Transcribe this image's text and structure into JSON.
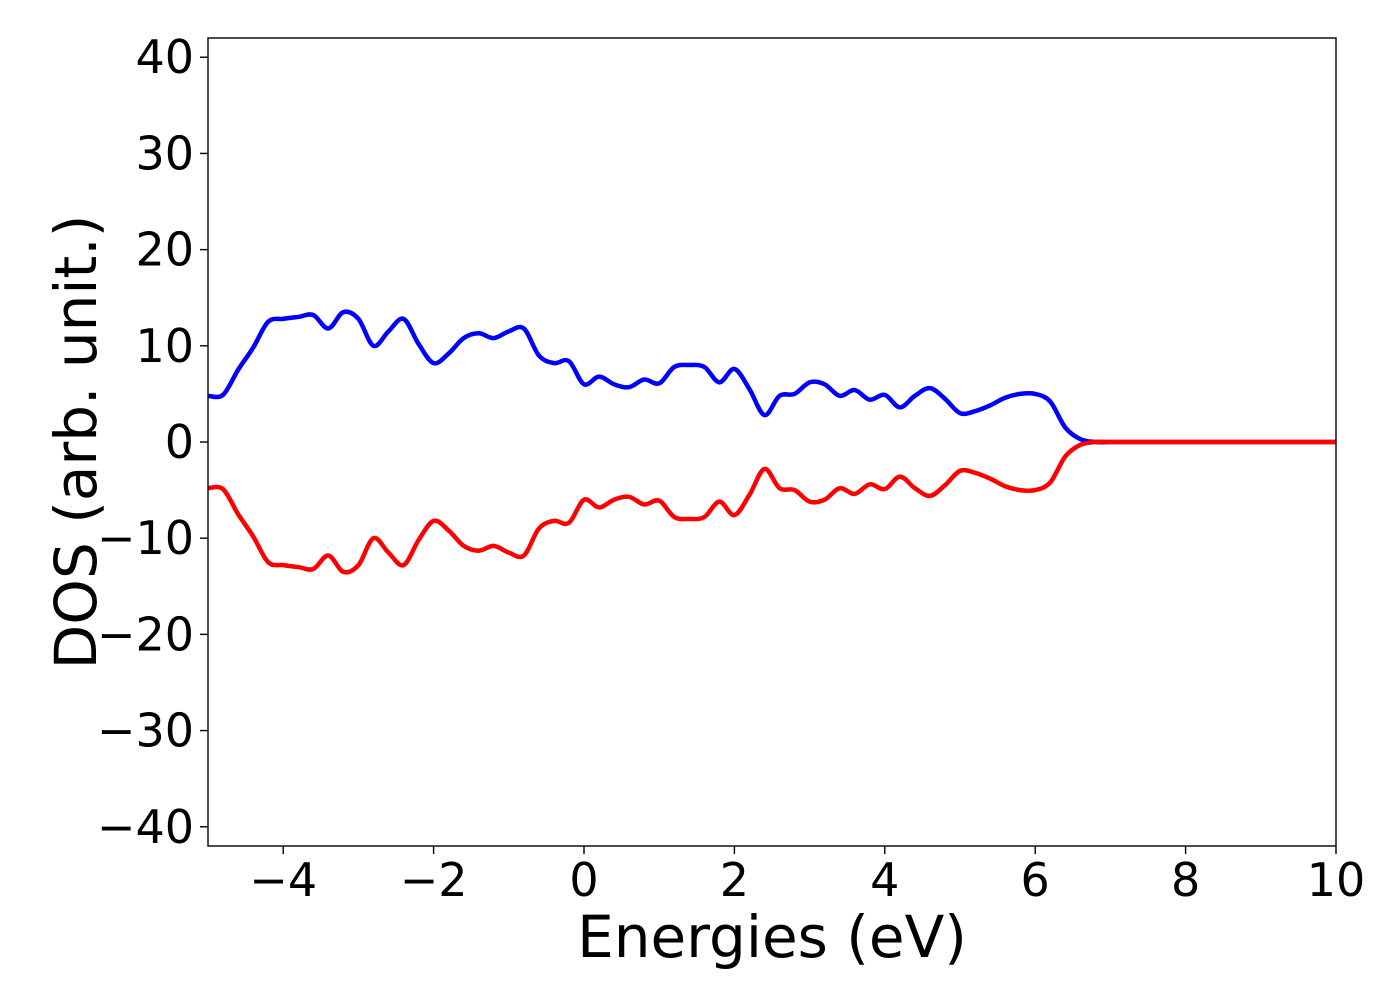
{
  "chart_data": {
    "type": "line",
    "title": "",
    "xlabel": "Energies (eV)",
    "ylabel": "DOS (arb. unit.)",
    "xlim": [
      -5,
      10
    ],
    "ylim": [
      -42,
      42
    ],
    "xticks": [
      -4,
      -2,
      0,
      2,
      4,
      6,
      8,
      10
    ],
    "xtick_labels": [
      "−4",
      "−2",
      "0",
      "2",
      "4",
      "6",
      "8",
      "10"
    ],
    "yticks": [
      40,
      30,
      20,
      10,
      0,
      -10,
      -20,
      -30,
      -40
    ],
    "ytick_labels": [
      "40",
      "30",
      "20",
      "10",
      "0",
      "−10",
      "−20",
      "−30",
      "−40"
    ],
    "grid": false,
    "legend": "none",
    "series": [
      {
        "color": "#0000ff",
        "x": [
          -5.0,
          -4.8,
          -4.6,
          -4.4,
          -4.2,
          -4.0,
          -3.8,
          -3.6,
          -3.4,
          -3.2,
          -3.0,
          -2.8,
          -2.6,
          -2.4,
          -2.2,
          -2.0,
          -1.8,
          -1.6,
          -1.4,
          -1.2,
          -1.0,
          -0.8,
          -0.6,
          -0.4,
          -0.2,
          0.0,
          0.2,
          0.4,
          0.6,
          0.8,
          1.0,
          1.2,
          1.4,
          1.6,
          1.8,
          2.0,
          2.2,
          2.4,
          2.6,
          2.8,
          3.0,
          3.2,
          3.4,
          3.6,
          3.8,
          4.0,
          4.2,
          4.4,
          4.6,
          4.8,
          5.0,
          5.2,
          5.4,
          5.6,
          5.8,
          6.0,
          6.2,
          6.4,
          6.6,
          6.8,
          7.0,
          7.2,
          7.4,
          7.6,
          7.8,
          8.0,
          8.2,
          8.4,
          8.6,
          8.8,
          9.0,
          9.2,
          9.4,
          9.6,
          9.8,
          10.0
        ],
        "y": [
          4.8,
          4.9,
          7.5,
          9.8,
          12.5,
          12.8,
          13.0,
          13.2,
          11.8,
          13.5,
          12.8,
          10.0,
          11.5,
          12.8,
          10.2,
          8.2,
          9.2,
          10.8,
          11.3,
          10.8,
          11.5,
          11.8,
          9.0,
          8.2,
          8.4,
          6.0,
          6.8,
          6.0,
          5.7,
          6.5,
          6.1,
          7.8,
          8.0,
          7.8,
          6.2,
          7.6,
          5.5,
          2.8,
          4.8,
          5.0,
          6.2,
          6.0,
          4.8,
          5.4,
          4.4,
          4.9,
          3.6,
          4.8,
          5.6,
          4.5,
          3.0,
          3.2,
          3.8,
          4.6,
          5.0,
          5.0,
          4.2,
          1.5,
          0.3,
          0.0,
          0.0,
          0.0,
          0.0,
          0.0,
          0.0,
          0.0,
          0.0,
          0.0,
          0.0,
          0.0,
          0.0,
          0.0,
          0.0,
          0.0,
          0.0,
          0.0
        ]
      },
      {
        "color": "#ff0000",
        "x": [
          -5.0,
          -4.8,
          -4.6,
          -4.4,
          -4.2,
          -4.0,
          -3.8,
          -3.6,
          -3.4,
          -3.2,
          -3.0,
          -2.8,
          -2.6,
          -2.4,
          -2.2,
          -2.0,
          -1.8,
          -1.6,
          -1.4,
          -1.2,
          -1.0,
          -0.8,
          -0.6,
          -0.4,
          -0.2,
          0.0,
          0.2,
          0.4,
          0.6,
          0.8,
          1.0,
          1.2,
          1.4,
          1.6,
          1.8,
          2.0,
          2.2,
          2.4,
          2.6,
          2.8,
          3.0,
          3.2,
          3.4,
          3.6,
          3.8,
          4.0,
          4.2,
          4.4,
          4.6,
          4.8,
          5.0,
          5.2,
          5.4,
          5.6,
          5.8,
          6.0,
          6.2,
          6.4,
          6.6,
          6.8,
          7.0,
          7.2,
          7.4,
          7.6,
          7.8,
          8.0,
          8.2,
          8.4,
          8.6,
          8.8,
          9.0,
          9.2,
          9.4,
          9.6,
          9.8,
          10.0
        ],
        "y": [
          -4.8,
          -4.9,
          -7.5,
          -9.8,
          -12.5,
          -12.8,
          -13.0,
          -13.2,
          -11.8,
          -13.5,
          -12.8,
          -10.0,
          -11.5,
          -12.8,
          -10.2,
          -8.2,
          -9.2,
          -10.8,
          -11.3,
          -10.8,
          -11.5,
          -11.8,
          -9.0,
          -8.2,
          -8.4,
          -6.0,
          -6.8,
          -6.0,
          -5.7,
          -6.5,
          -6.1,
          -7.8,
          -8.0,
          -7.8,
          -6.2,
          -7.6,
          -5.5,
          -2.8,
          -4.8,
          -5.0,
          -6.2,
          -6.0,
          -4.8,
          -5.4,
          -4.4,
          -4.9,
          -3.6,
          -4.8,
          -5.6,
          -4.5,
          -3.0,
          -3.2,
          -3.8,
          -4.6,
          -5.0,
          -5.0,
          -4.2,
          -1.5,
          -0.3,
          0.0,
          0.0,
          0.0,
          0.0,
          0.0,
          0.0,
          0.0,
          0.0,
          0.0,
          0.0,
          0.0,
          0.0,
          0.0,
          0.0,
          0.0,
          0.0,
          0.0
        ]
      }
    ]
  }
}
